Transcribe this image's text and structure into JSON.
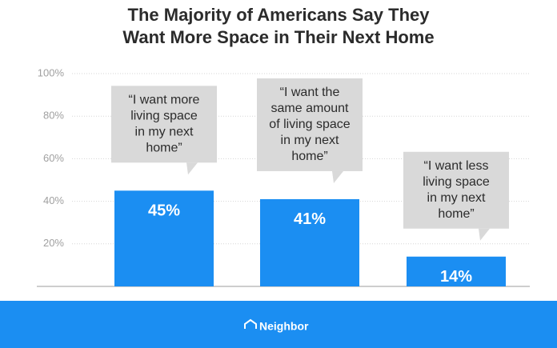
{
  "chart_data": {
    "type": "bar",
    "title": [
      "The Majority of Americans Say They",
      "Want More Space in Their Next Home"
    ],
    "categories": [
      null,
      null,
      null
    ],
    "values": [
      45,
      41,
      14
    ],
    "value_labels": [
      "45%",
      "41%",
      "14%"
    ],
    "annotations": [
      [
        "“I want more",
        "living space",
        "in my next",
        "home”"
      ],
      [
        "“I want the",
        "same amount",
        "of living space",
        "in my next",
        "home”"
      ],
      [
        "“I want less",
        "living space",
        "in my next",
        "home”"
      ]
    ],
    "color": "#1b8ef2",
    "ylim": [
      0,
      100
    ],
    "yticks": [
      {
        "value": 20,
        "label": "20%"
      },
      {
        "value": 40,
        "label": "40%"
      },
      {
        "value": 60,
        "label": "60%"
      },
      {
        "value": 80,
        "label": "80%"
      },
      {
        "value": 100,
        "label": "100%"
      }
    ],
    "grid": true
  },
  "footer": {
    "brand": "Neighbor"
  }
}
